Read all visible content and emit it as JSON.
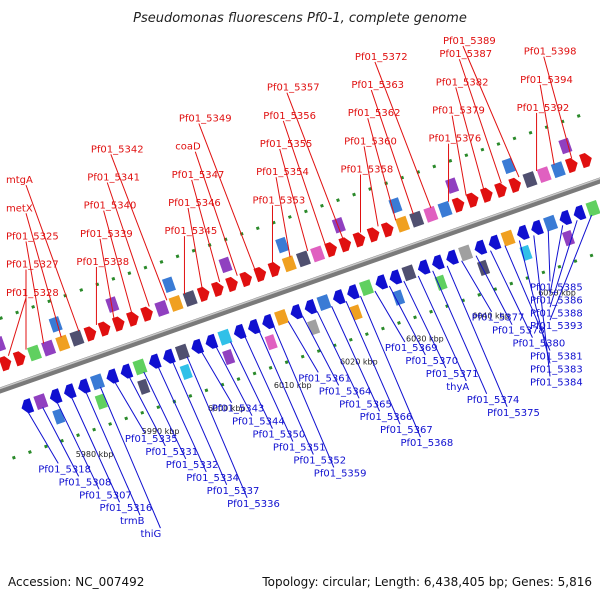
{
  "title": "Pseudomonas fluorescens Pf0-1, complete genome",
  "footer": {
    "accession": "Accession: NC_007492",
    "summary": "Topology: circular; Length: 6,438,405 bp; Genes: 5,816"
  },
  "colors": {
    "forward": "#e01010",
    "reverse": "#1010d0",
    "backbone": "#7a7a7a",
    "ticks": "#2a8a2a"
  },
  "kbp_labels": [
    "5980 kbp",
    "5990 kbp",
    "6000 kbp",
    "6010 kbp",
    "6020 kbp",
    "6030 kbp",
    "6040 kbp",
    "6050 kbp"
  ],
  "forward_genes": [
    {
      "label": "Pf01_5328"
    },
    {
      "label": "Pf01_5327"
    },
    {
      "label": "Pf01_5325"
    },
    {
      "label": "metX"
    },
    {
      "label": "mtgA"
    },
    {
      "label": "Pf01_5338"
    },
    {
      "label": "Pf01_5339"
    },
    {
      "label": "Pf01_5340"
    },
    {
      "label": "Pf01_5341"
    },
    {
      "label": "Pf01_5342"
    },
    {
      "label": "Pf01_5345"
    },
    {
      "label": "Pf01_5346"
    },
    {
      "label": "Pf01_5347"
    },
    {
      "label": "coaD"
    },
    {
      "label": "Pf01_5349"
    },
    {
      "label": "Pf01_5353"
    },
    {
      "label": "Pf01_5354"
    },
    {
      "label": "Pf01_5355"
    },
    {
      "label": "Pf01_5356"
    },
    {
      "label": "Pf01_5357"
    },
    {
      "label": "Pf01_5358"
    },
    {
      "label": "Pf01_5360"
    },
    {
      "label": "Pf01_5362"
    },
    {
      "label": "Pf01_5363"
    },
    {
      "label": "Pf01_5372"
    },
    {
      "label": "Pf01_5376"
    },
    {
      "label": "Pf01_5379"
    },
    {
      "label": "Pf01_5382"
    },
    {
      "label": "Pf01_5387"
    },
    {
      "label": "Pf01_5389"
    },
    {
      "label": "Pf01_5392"
    },
    {
      "label": "Pf01_5394"
    },
    {
      "label": "Pf01_5398"
    }
  ],
  "reverse_genes": [
    {
      "label": "Pf01_5318"
    },
    {
      "label": "Pf01_5308"
    },
    {
      "label": "Pf01_5307"
    },
    {
      "label": "Pf01_5316"
    },
    {
      "label": "trmB"
    },
    {
      "label": "thiG"
    },
    {
      "label": "Pf01_5335"
    },
    {
      "label": "Pf01_5331"
    },
    {
      "label": "Pf01_5332"
    },
    {
      "label": "Pf01_5334"
    },
    {
      "label": "Pf01_5337"
    },
    {
      "label": "Pf01_5336"
    },
    {
      "label": "Pf01_5343"
    },
    {
      "label": "Pf01_5344"
    },
    {
      "label": "Pf01_5350"
    },
    {
      "label": "Pf01_5351"
    },
    {
      "label": "Pf01_5352"
    },
    {
      "label": "Pf01_5359"
    },
    {
      "label": "Pf01_5361"
    },
    {
      "label": "Pf01_5364"
    },
    {
      "label": "Pf01_5365"
    },
    {
      "label": "Pf01_5366"
    },
    {
      "label": "Pf01_5367"
    },
    {
      "label": "Pf01_5368"
    },
    {
      "label": "Pf01_5369"
    },
    {
      "label": "Pf01_5370"
    },
    {
      "label": "Pf01_5371"
    },
    {
      "label": "thyA"
    },
    {
      "label": "Pf01_5374"
    },
    {
      "label": "Pf01_5375"
    },
    {
      "label": "Pf01_5377"
    },
    {
      "label": "Pf01_5378"
    },
    {
      "label": "Pf01_5380"
    },
    {
      "label": "Pf01_5381"
    },
    {
      "label": "Pf01_5383"
    },
    {
      "label": "Pf01_5384"
    },
    {
      "label": "Pf01_5385"
    },
    {
      "label": "Pf01_5386"
    },
    {
      "label": "Pf01_5388"
    },
    {
      "label": "Pf01_5393"
    }
  ]
}
